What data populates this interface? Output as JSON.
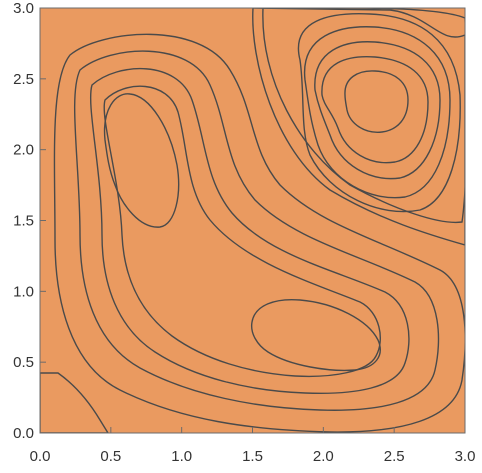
{
  "chart_data": {
    "type": "contour",
    "title": "",
    "xlabel": "",
    "ylabel": "",
    "xlim": [
      0.0,
      3.0
    ],
    "ylim": [
      0.0,
      3.0
    ],
    "x_ticks": [
      "0.0",
      "0.5",
      "1.0",
      "1.5",
      "2.0",
      "2.5",
      "3.0"
    ],
    "y_ticks": [
      "0.0",
      "0.5",
      "1.0",
      "1.5",
      "2.0",
      "2.5",
      "3.0"
    ],
    "grid": false,
    "legend": "none",
    "extrema": [
      {
        "kind": "minimum",
        "x": 2.35,
        "y": 2.35
      },
      {
        "kind": "maximum",
        "x": 0.7,
        "y": 1.95
      },
      {
        "kind": "maximum",
        "x": 2.0,
        "y": 0.7
      },
      {
        "kind": "low",
        "x": 0.1,
        "y": 0.15
      }
    ],
    "colors": {
      "lowest": "#2e3f8c",
      "low": "#7b4a8a",
      "mid_low": "#c7574f",
      "mid": "#ea8a58",
      "mid_high": "#f4b46b",
      "high": "#fbd68f",
      "highest": "#fff6d2"
    }
  }
}
